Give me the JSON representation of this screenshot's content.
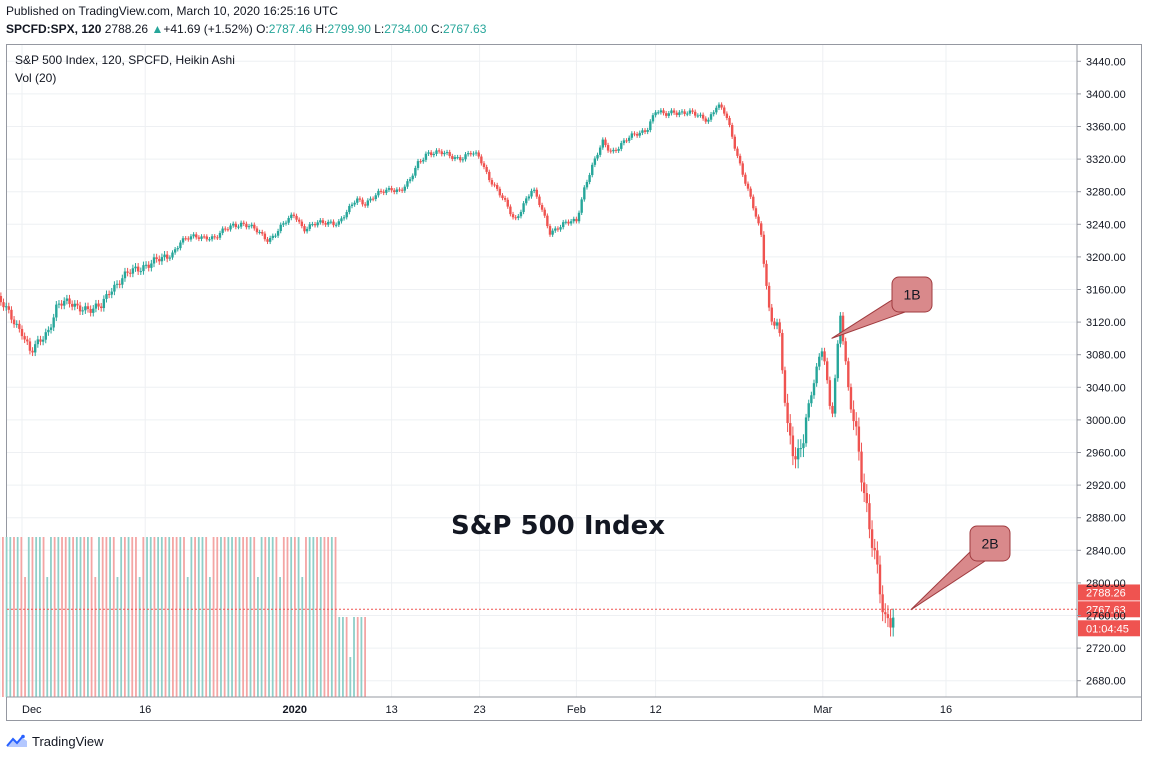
{
  "header": {
    "published": "Published on TradingView.com, March 10, 2020 16:25:16 UTC",
    "symbol": "SPCFD:SPX, 120",
    "last": "2788.26",
    "change_arrow": "▲",
    "change": "+41.69 (+1.52%)",
    "o_label": "O:",
    "o_value": "2787.46",
    "h_label": "H:",
    "h_value": "2799.90",
    "l_label": "L:",
    "l_value": "2734.00",
    "c_label": "C:",
    "c_value": "2767.63"
  },
  "legend": {
    "title": "S&P 500 Index, 120, SPCFD, Heikin Ashi",
    "volume": "Vol (20)"
  },
  "footer": {
    "brand": "TradingView",
    "logo_icon": "tradingview-logo-icon"
  },
  "colors": {
    "up": "#26a69a",
    "down": "#ef5350",
    "up_vol": "#8fcfc8",
    "down_vol": "#f4a5a4",
    "grid": "#eef0f3",
    "callout_fill": "#d9898b",
    "callout_stroke": "#a03b3f"
  },
  "chart_data": {
    "type": "candlestick",
    "style": "Heikin Ashi",
    "title": "S&P 500 Index",
    "xlabel": "",
    "ylabel": "",
    "ylim": [
      2660,
      3460
    ],
    "y_ticks": [
      "3440.00",
      "3400.00",
      "3360.00",
      "3320.00",
      "3280.00",
      "3240.00",
      "3200.00",
      "3160.00",
      "3120.00",
      "3080.00",
      "3040.00",
      "3000.00",
      "2960.00",
      "2920.00",
      "2880.00",
      "2840.00",
      "2800.00",
      "2760.00",
      "2720.00",
      "2680.00"
    ],
    "x_ticks": [
      "Dec",
      "16",
      "2020",
      "13",
      "23",
      "Feb",
      "12",
      "Mar",
      "16"
    ],
    "x_tick_dates": [
      "2019-12-02",
      "2019-12-16",
      "2020-01-02",
      "2020-01-13",
      "2020-01-23",
      "2020-02-03",
      "2020-02-12",
      "2020-03-02",
      "2020-03-16"
    ],
    "price_labels": [
      {
        "value": "2788.26",
        "kind": "last"
      },
      {
        "value": "2767.63",
        "kind": "close"
      },
      {
        "value": "01:04:45",
        "kind": "countdown"
      }
    ],
    "price_line_value": 2767.63,
    "annotations": [
      {
        "label": "1B",
        "target_date": "2020-03-03",
        "target_value": 3100
      },
      {
        "label": "2B",
        "target_date": "2020-03-12",
        "target_value": 2767
      },
      {
        "label": "S&P 500 Index",
        "kind": "text"
      }
    ],
    "series": [
      {
        "name": "SPX",
        "points": [
          [
            "2019-11-29",
            3150
          ],
          [
            "2019-12-02",
            3110
          ],
          [
            "2019-12-03",
            3080
          ],
          [
            "2019-12-04",
            3095
          ],
          [
            "2019-12-05",
            3112
          ],
          [
            "2019-12-06",
            3142
          ],
          [
            "2019-12-09",
            3140
          ],
          [
            "2019-12-10",
            3133
          ],
          [
            "2019-12-11",
            3138
          ],
          [
            "2019-12-12",
            3162
          ],
          [
            "2019-12-13",
            3170
          ],
          [
            "2019-12-16",
            3192
          ],
          [
            "2019-12-17",
            3194
          ],
          [
            "2019-12-18",
            3195
          ],
          [
            "2019-12-19",
            3204
          ],
          [
            "2019-12-20",
            3220
          ],
          [
            "2019-12-23",
            3226
          ],
          [
            "2019-12-24",
            3223
          ],
          [
            "2019-12-26",
            3240
          ],
          [
            "2019-12-27",
            3242
          ],
          [
            "2019-12-30",
            3222
          ],
          [
            "2019-12-31",
            3231
          ],
          [
            "2020-01-02",
            3253
          ],
          [
            "2020-01-03",
            3235
          ],
          [
            "2020-01-06",
            3244
          ],
          [
            "2020-01-07",
            3242
          ],
          [
            "2020-01-08",
            3254
          ],
          [
            "2020-01-09",
            3272
          ],
          [
            "2020-01-10",
            3267
          ],
          [
            "2020-01-13",
            3285
          ],
          [
            "2020-01-14",
            3282
          ],
          [
            "2020-01-15",
            3290
          ],
          [
            "2020-01-16",
            3315
          ],
          [
            "2020-01-17",
            3329
          ],
          [
            "2020-01-21",
            3322
          ],
          [
            "2020-01-22",
            3326
          ],
          [
            "2020-01-23",
            3322
          ],
          [
            "2020-01-24",
            3300
          ],
          [
            "2020-01-27",
            3245
          ],
          [
            "2020-01-28",
            3266
          ],
          [
            "2020-01-29",
            3282
          ],
          [
            "2020-01-30",
            3260
          ],
          [
            "2020-01-31",
            3232
          ],
          [
            "2020-02-03",
            3245
          ],
          [
            "2020-02-04",
            3290
          ],
          [
            "2020-02-05",
            3315
          ],
          [
            "2020-02-06",
            3340
          ],
          [
            "2020-02-07",
            3330
          ],
          [
            "2020-02-10",
            3352
          ],
          [
            "2020-02-11",
            3358
          ],
          [
            "2020-02-12",
            3378
          ],
          [
            "2020-02-13",
            3373
          ],
          [
            "2020-02-14",
            3380
          ],
          [
            "2020-02-18",
            3370
          ],
          [
            "2020-02-19",
            3386
          ],
          [
            "2020-02-20",
            3373
          ],
          [
            "2020-02-21",
            3337
          ],
          [
            "2020-02-24",
            3226
          ],
          [
            "2020-02-25",
            3128
          ],
          [
            "2020-02-26",
            3116
          ],
          [
            "2020-02-27",
            2978
          ],
          [
            "2020-02-28",
            2954
          ],
          [
            "2020-03-02",
            3090
          ],
          [
            "2020-03-03",
            3003
          ],
          [
            "2020-03-04",
            3130
          ],
          [
            "2020-03-05",
            3023
          ],
          [
            "2020-03-06",
            2972
          ],
          [
            "2020-03-09",
            2746
          ],
          [
            "2020-03-10",
            2767
          ]
        ]
      }
    ],
    "volume": {
      "name": "Vol (20)",
      "dates": [
        "2019-11-29",
        "2020-01-10"
      ],
      "note": "uniform session volume bars"
    }
  }
}
